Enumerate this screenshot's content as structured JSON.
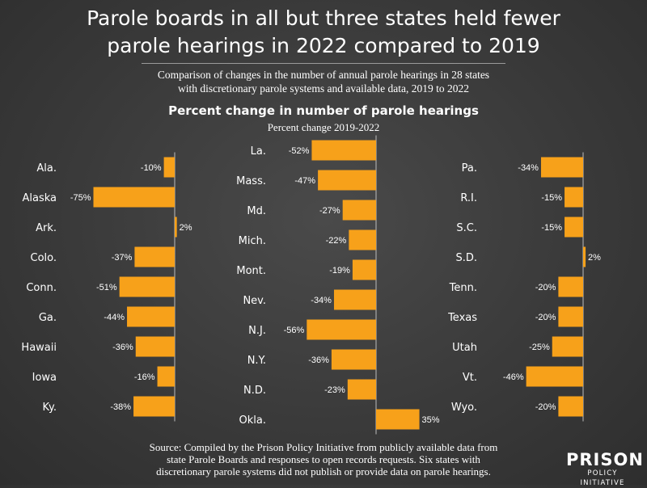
{
  "header": {
    "title_line1": "Parole boards in all but three states held fewer",
    "title_line2": "parole hearings in 2022 compared to 2019",
    "subtitle_line1": "Comparison of changes in the number of annual parole hearings in 28 states",
    "subtitle_line2": "with discretionary parole systems and available data, 2019 to 2022"
  },
  "chart_data": {
    "type": "bar",
    "orientation": "horizontal",
    "title": "Percent change in number of parole hearings",
    "subtitle": "Percent change 2019-2022",
    "unit": "%",
    "panels": [
      {
        "categories": [
          "Ala.",
          "Alaska",
          "Ark.",
          "Colo.",
          "Conn.",
          "Ga.",
          "Hawaii",
          "Iowa",
          "Ky."
        ],
        "values": [
          -10,
          -75,
          2,
          -37,
          -51,
          -44,
          -36,
          -16,
          -38
        ]
      },
      {
        "categories": [
          "La.",
          "Mass.",
          "Md.",
          "Mich.",
          "Mont.",
          "Nev.",
          "N.J.",
          "N.Y.",
          "N.D.",
          "Okla."
        ],
        "values": [
          -52,
          -47,
          -27,
          -22,
          -19,
          -34,
          -56,
          -36,
          -23,
          35
        ]
      },
      {
        "categories": [
          "Pa.",
          "R.I.",
          "S.C.",
          "S.D.",
          "Tenn.",
          "Texas",
          "Utah",
          "Vt.",
          "Wyo."
        ],
        "values": [
          -34,
          -15,
          -15,
          2,
          -20,
          -20,
          -25,
          -46,
          -20
        ]
      }
    ],
    "bar_color": "#f7a11a"
  },
  "footer": {
    "source_line1": "Source: Compiled by the Prison Policy Initiative from publicly available data from",
    "source_line2": "state Parole Boards and responses to open records requests. Six states with",
    "source_line3": "discretionary parole systems did not publish or provide data on parole hearings.",
    "logo_top": "PRISON",
    "logo_bottom": "POLICY INITIATIVE"
  }
}
